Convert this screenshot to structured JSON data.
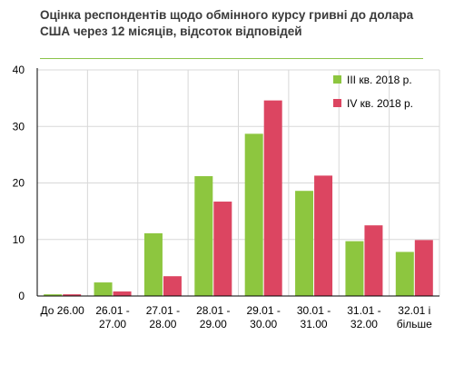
{
  "title": "Оцінка респондентів щодо обмінного  курсу гривні до долара США через 12 місяців, відсоток відповідей",
  "colors": {
    "series1": "#8dc63f",
    "series2": "#dc4561",
    "grid": "#d8d8d8",
    "axis": "#000000",
    "rule": "#8bc34a"
  },
  "chart_data": {
    "type": "bar",
    "title": "Оцінка респондентів щодо обмінного  курсу гривні до долара США через 12 місяців, відсоток відповідей",
    "xlabel": "",
    "ylabel": "",
    "ylim": [
      0,
      40
    ],
    "yticks": [
      0,
      10,
      20,
      30,
      40
    ],
    "grid": true,
    "legend_position": "top-right",
    "categories": [
      [
        "До 26.00"
      ],
      [
        "26.01 -",
        "27.00"
      ],
      [
        "27.01 -",
        "28.00"
      ],
      [
        "28.01 -",
        "29.00"
      ],
      [
        "29.01 -",
        "30.00"
      ],
      [
        "30.01 -",
        "31.00"
      ],
      [
        "31.01 -",
        "32.00"
      ],
      [
        "32.01 і",
        "більше"
      ]
    ],
    "series": [
      {
        "name": "III кв. 2018 р.",
        "color": "#8dc63f",
        "values": [
          0.3,
          2.4,
          11.1,
          21.2,
          28.7,
          18.6,
          9.7,
          7.8
        ]
      },
      {
        "name": "IV кв. 2018 р.",
        "color": "#dc4561",
        "values": [
          0.3,
          0.8,
          3.5,
          16.7,
          34.6,
          21.3,
          12.5,
          9.9
        ]
      }
    ]
  }
}
